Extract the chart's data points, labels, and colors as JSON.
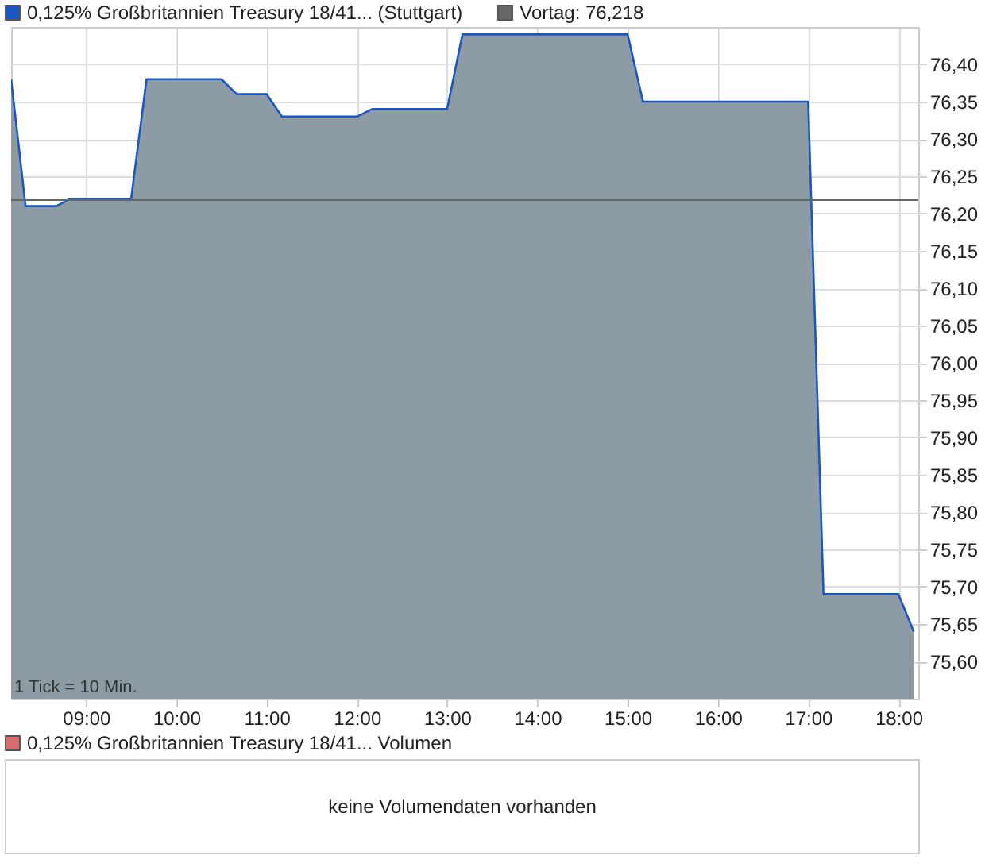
{
  "chart_data": {
    "type": "area",
    "legend": "top left",
    "grid": true,
    "x": [
      8.17,
      8.33,
      8.67,
      8.83,
      9.5,
      9.67,
      10.5,
      10.67,
      11.0,
      11.17,
      12.0,
      12.17,
      13.0,
      13.17,
      15.0,
      15.17,
      17.0,
      17.17,
      18.0,
      18.17
    ],
    "series": [
      {
        "name": "0,125% Großbritannien Treasury 18/41... (Stuttgart)",
        "color": "#1a56c4",
        "values": [
          76.38,
          76.21,
          76.21,
          76.22,
          76.22,
          76.38,
          76.38,
          76.36,
          76.36,
          76.33,
          76.33,
          76.34,
          76.34,
          76.44,
          76.44,
          76.35,
          76.35,
          75.69,
          75.69,
          75.64
        ]
      }
    ],
    "xlim": [
      8.17,
      18.22
    ],
    "xticks": [
      {
        "value": 9,
        "label": "09:00"
      },
      {
        "value": 10,
        "label": "10:00"
      },
      {
        "value": 11,
        "label": "11:00"
      },
      {
        "value": 12,
        "label": "12:00"
      },
      {
        "value": 13,
        "label": "13:00"
      },
      {
        "value": 14,
        "label": "14:00"
      },
      {
        "value": 15,
        "label": "15:00"
      },
      {
        "value": 16,
        "label": "16:00"
      },
      {
        "value": 17,
        "label": "17:00"
      },
      {
        "value": 18,
        "label": "18:00"
      }
    ],
    "ylim": [
      75.55,
      76.45
    ],
    "yticks": [
      {
        "value": 75.6,
        "label": "75,60"
      },
      {
        "value": 75.65,
        "label": "75,65"
      },
      {
        "value": 75.7,
        "label": "75,70"
      },
      {
        "value": 75.75,
        "label": "75,75"
      },
      {
        "value": 75.8,
        "label": "75,80"
      },
      {
        "value": 75.85,
        "label": "75,85"
      },
      {
        "value": 75.9,
        "label": "75,90"
      },
      {
        "value": 75.95,
        "label": "75,95"
      },
      {
        "value": 76.0,
        "label": "76,00"
      },
      {
        "value": 76.05,
        "label": "76,05"
      },
      {
        "value": 76.1,
        "label": "76,10"
      },
      {
        "value": 76.15,
        "label": "76,15"
      },
      {
        "value": 76.2,
        "label": "76,20"
      },
      {
        "value": 76.25,
        "label": "76,25"
      },
      {
        "value": 76.3,
        "label": "76,30"
      },
      {
        "value": 76.35,
        "label": "76,35"
      },
      {
        "value": 76.4,
        "label": "76,40"
      }
    ],
    "ref_lines": [
      {
        "axis": "y",
        "value": 76.218,
        "label": "Vortag: 76,218",
        "color": "#666666"
      }
    ],
    "annotations": [
      "1 Tick = 10 Min.",
      "0,125% Großbritannien Treasury 18/41... Volumen",
      "keine Volumendaten vorhanden"
    ]
  }
}
